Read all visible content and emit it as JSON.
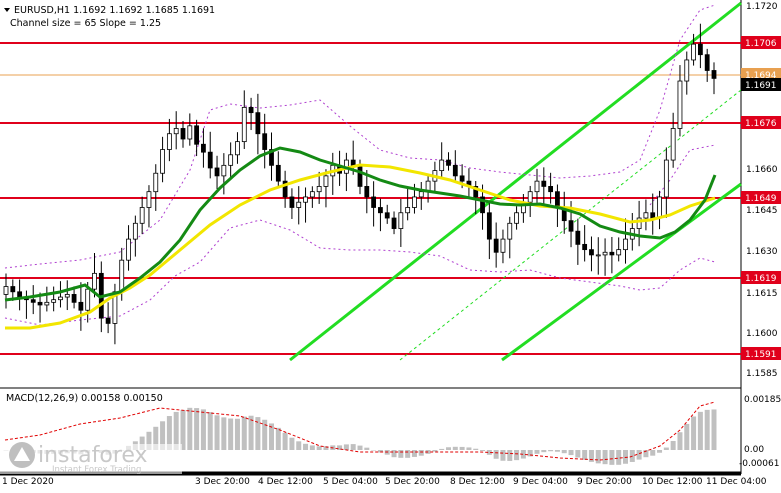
{
  "header": {
    "symbol_line": "EURUSD,H1  1.1692 1.1692 1.1685 1.1691",
    "channel_line": "Channel size = 65 Slope = 1.25"
  },
  "macd": {
    "label": "MACD(12,26,9) 0.00158 0.00150"
  },
  "watermark": {
    "brand": "instaforex",
    "tagline": "Instant Forex Trading"
  },
  "colors": {
    "level_line": "#e0001b",
    "channel": "#22dd22",
    "ma_fast": "#148a14",
    "ma_slow": "#f2e600",
    "envelope": "#b040d0",
    "current_price_line": "#e8a050",
    "histogram": "#c0c0c0",
    "signal": "#e00000"
  },
  "chart_data": {
    "type": "candlestick",
    "symbol": "EURUSD",
    "timeframe": "H1",
    "ohlc_last": {
      "open": 1.1692,
      "high": 1.1692,
      "low": 1.1685,
      "close": 1.1691
    },
    "ylim": [
      1.1575,
      1.172
    ],
    "price_ticks": [
      "1.1720",
      "1.1706",
      "1.1694",
      "1.1691",
      "1.1676",
      "1.1660",
      "1.1649",
      "1.1645",
      "1.1630",
      "1.1619",
      "1.1615",
      "1.1600",
      "1.1591",
      "1.1585"
    ],
    "levels": [
      1.1706,
      1.1676,
      1.1649,
      1.1619,
      1.1591
    ],
    "current_price": 1.1691,
    "x_labels": [
      "1 Dec 2020",
      "3 Dec 20:00",
      "4 Dec 12:00",
      "5 Dec 04:00",
      "5 Dec 20:00",
      "8 Dec 12:00",
      "9 Dec 04:00",
      "9 Dec 20:00",
      "10 Dec 12:00",
      "11 Dec 04:00"
    ],
    "closes": [
      1.1612,
      1.161,
      1.1608,
      1.1607,
      1.1606,
      1.1605,
      1.1606,
      1.1607,
      1.1608,
      1.1609,
      1.1606,
      1.1603,
      1.1611,
      1.1617,
      1.16,
      1.1598,
      1.161,
      1.1622,
      1.163,
      1.1636,
      1.1642,
      1.1648,
      1.1655,
      1.1664,
      1.167,
      1.1672,
      1.1668,
      1.1673,
      1.1666,
      1.1663,
      1.1657,
      1.1654,
      1.1658,
      1.1662,
      1.1667,
      1.168,
      1.1678,
      1.167,
      1.1664,
      1.1658,
      1.1652,
      1.1646,
      1.1642,
      1.1644,
      1.1646,
      1.1648,
      1.165,
      1.1654,
      1.1658,
      1.1655,
      1.166,
      1.1658,
      1.165,
      1.1646,
      1.1642,
      1.164,
      1.1638,
      1.1634,
      1.164,
      1.1642,
      1.1646,
      1.1648,
      1.1652,
      1.1656,
      1.166,
      1.1658,
      1.1654,
      1.1652,
      1.165,
      1.1646,
      1.164,
      1.163,
      1.1625,
      1.163,
      1.1636,
      1.164,
      1.1644,
      1.1648,
      1.1652,
      1.165,
      1.1648,
      1.1642,
      1.1637,
      1.1633,
      1.1628,
      1.1626,
      1.1624,
      1.1624,
      1.1625,
      1.1624,
      1.1626,
      1.163,
      1.1634,
      1.1638,
      1.164,
      1.1638,
      1.1646,
      1.166,
      1.1672,
      1.169,
      1.1698,
      1.1704,
      1.17,
      1.1694,
      1.1691
    ],
    "ma_fast_ticks": "1.1605@0, 1.1612@16, 1.1640@25, 1.1664@35, 1.1660@48, 1.1650@65, 1.1644@80, 1.1636@95, 1.1652@104",
    "ma_slow_ticks": "1.1600@0, 1.1608@16, 1.1630@30, 1.1660@48, 1.1650@70, 1.1644@85, 1.1648@104"
  }
}
